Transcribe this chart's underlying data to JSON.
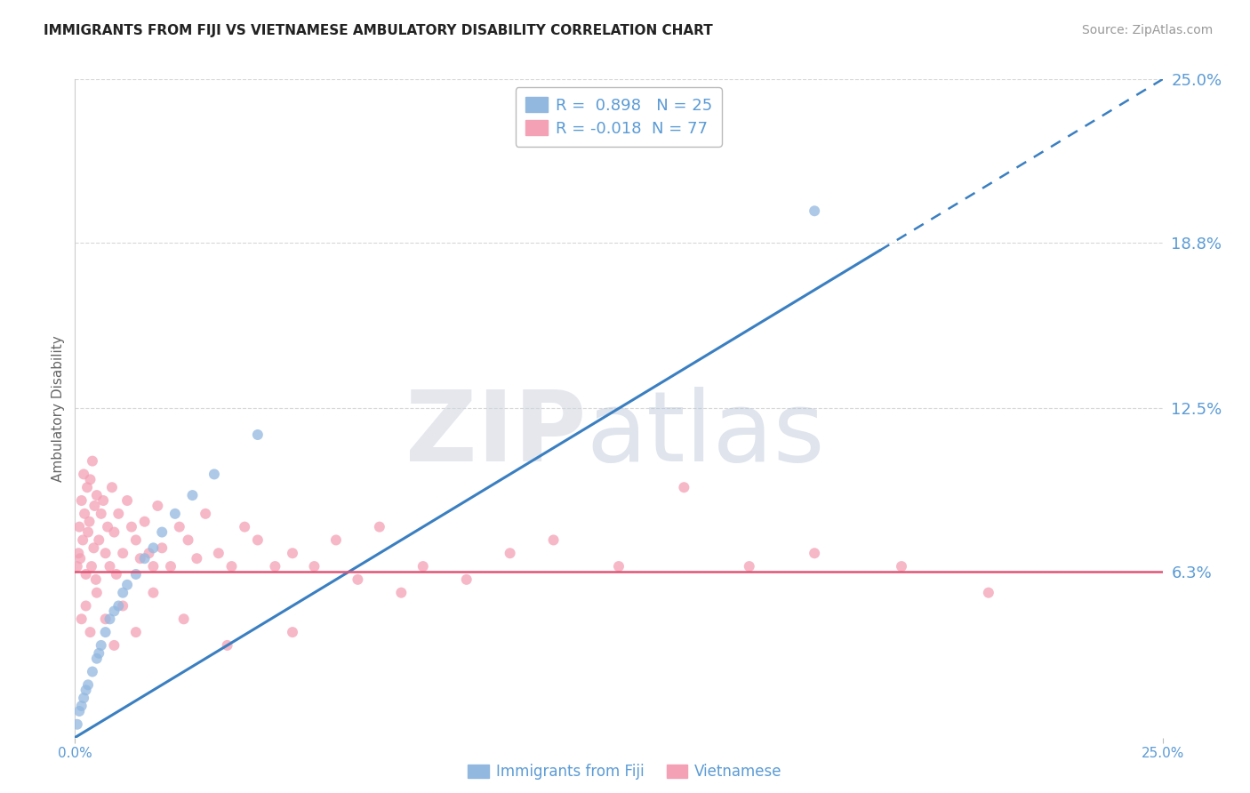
{
  "title": "IMMIGRANTS FROM FIJI VS VIETNAMESE AMBULATORY DISABILITY CORRELATION CHART",
  "source": "Source: ZipAtlas.com",
  "ylabel": "Ambulatory Disability",
  "xlim": [
    0.0,
    25.0
  ],
  "ylim": [
    0.0,
    25.0
  ],
  "xticks": [
    0.0,
    25.0
  ],
  "xticklabels": [
    "0.0%",
    "25.0%"
  ],
  "yticks": [
    6.3,
    12.5,
    18.8,
    25.0
  ],
  "yticklabels": [
    "6.3%",
    "12.5%",
    "18.8%",
    "25.0%"
  ],
  "grid_color": "#c8c8c8",
  "background_color": "#ffffff",
  "series1": {
    "label": "Immigrants from Fiji",
    "R": 0.898,
    "N": 25,
    "color": "#92b8e0",
    "trend_color": "#3a7fc1",
    "marker_size": 75,
    "x": [
      0.05,
      0.1,
      0.15,
      0.2,
      0.25,
      0.3,
      0.4,
      0.5,
      0.55,
      0.6,
      0.7,
      0.8,
      0.9,
      1.0,
      1.1,
      1.2,
      1.4,
      1.6,
      1.8,
      2.0,
      2.3,
      2.7,
      3.2,
      4.2,
      17.0
    ],
    "y": [
      0.5,
      1.0,
      1.2,
      1.5,
      1.8,
      2.0,
      2.5,
      3.0,
      3.2,
      3.5,
      4.0,
      4.5,
      4.8,
      5.0,
      5.5,
      5.8,
      6.2,
      6.8,
      7.2,
      7.8,
      8.5,
      9.2,
      10.0,
      11.5,
      20.0
    ]
  },
  "series2": {
    "label": "Vietnamese",
    "R": -0.018,
    "N": 77,
    "color": "#f4a0b5",
    "trend_color": "#e05575",
    "marker_size": 75,
    "x": [
      0.05,
      0.08,
      0.1,
      0.12,
      0.15,
      0.18,
      0.2,
      0.22,
      0.25,
      0.28,
      0.3,
      0.33,
      0.35,
      0.38,
      0.4,
      0.43,
      0.45,
      0.48,
      0.5,
      0.55,
      0.6,
      0.65,
      0.7,
      0.75,
      0.8,
      0.85,
      0.9,
      0.95,
      1.0,
      1.1,
      1.2,
      1.3,
      1.4,
      1.5,
      1.6,
      1.7,
      1.8,
      1.9,
      2.0,
      2.2,
      2.4,
      2.6,
      2.8,
      3.0,
      3.3,
      3.6,
      3.9,
      4.2,
      4.6,
      5.0,
      5.5,
      6.0,
      6.5,
      7.0,
      7.5,
      8.0,
      9.0,
      10.0,
      11.0,
      12.5,
      14.0,
      15.5,
      17.0,
      19.0,
      21.0,
      0.15,
      0.25,
      0.35,
      0.5,
      0.7,
      0.9,
      1.1,
      1.4,
      1.8,
      2.5,
      3.5,
      5.0
    ],
    "y": [
      6.5,
      7.0,
      8.0,
      6.8,
      9.0,
      7.5,
      10.0,
      8.5,
      6.2,
      9.5,
      7.8,
      8.2,
      9.8,
      6.5,
      10.5,
      7.2,
      8.8,
      6.0,
      9.2,
      7.5,
      8.5,
      9.0,
      7.0,
      8.0,
      6.5,
      9.5,
      7.8,
      6.2,
      8.5,
      7.0,
      9.0,
      8.0,
      7.5,
      6.8,
      8.2,
      7.0,
      6.5,
      8.8,
      7.2,
      6.5,
      8.0,
      7.5,
      6.8,
      8.5,
      7.0,
      6.5,
      8.0,
      7.5,
      6.5,
      7.0,
      6.5,
      7.5,
      6.0,
      8.0,
      5.5,
      6.5,
      6.0,
      7.0,
      7.5,
      6.5,
      9.5,
      6.5,
      7.0,
      6.5,
      5.5,
      4.5,
      5.0,
      4.0,
      5.5,
      4.5,
      3.5,
      5.0,
      4.0,
      5.5,
      4.5,
      3.5,
      4.0
    ]
  },
  "title_fontsize": 11,
  "source_fontsize": 10,
  "axis_tick_color": "#5b9bd5",
  "axis_label_color": "#666666",
  "legend_label_color": "#5b9bd5"
}
